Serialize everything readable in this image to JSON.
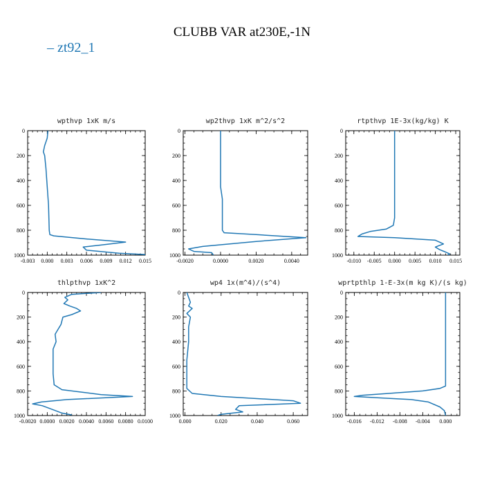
{
  "title": "CLUBB VAR at230E,-1N",
  "legend": {
    "label": "zt92_1",
    "color": "#1f77b4"
  },
  "chart_data": [
    {
      "type": "line",
      "title": "wpthvp  1xK m/s",
      "xlim": [
        -0.003,
        0.015
      ],
      "ylim": [
        0,
        1000
      ],
      "y_reversed": true,
      "xticks": [
        "-0.003",
        "0.000",
        "0.003",
        "0.006",
        "0.009",
        "0.012",
        "0.015"
      ],
      "yticks": [
        "0",
        "200",
        "400",
        "600",
        "800",
        "1000"
      ],
      "series": [
        {
          "color": "#1f77b4",
          "points": [
            [
              0.0001,
              0
            ],
            [
              0.0,
              60
            ],
            [
              -0.0004,
              120
            ],
            [
              -0.0006,
              170
            ],
            [
              -0.0004,
              200
            ],
            [
              -0.0002,
              300
            ],
            [
              0.0,
              450
            ],
            [
              0.0002,
              600
            ],
            [
              0.0003,
              800
            ],
            [
              0.0004,
              835
            ],
            [
              0.001,
              845
            ],
            [
              0.006,
              870
            ],
            [
              0.012,
              895
            ],
            [
              0.008,
              920
            ],
            [
              0.0055,
              935
            ],
            [
              0.006,
              960
            ],
            [
              0.011,
              985
            ],
            [
              0.015,
              995
            ]
          ]
        }
      ]
    },
    {
      "type": "line",
      "title": "wp2thvp  1xK m^2/s^2",
      "xlim": [
        -0.0021,
        0.0049
      ],
      "ylim": [
        0,
        1000
      ],
      "y_reversed": true,
      "xticks": [
        "-0.0020",
        "0.0000",
        "0.0020",
        "0.0040"
      ],
      "yticks": [
        "0",
        "200",
        "400",
        "600",
        "800",
        "1000"
      ],
      "series": [
        {
          "color": "#1f77b4",
          "points": [
            [
              0.0,
              0
            ],
            [
              0.0,
              300
            ],
            [
              0.0,
              450
            ],
            [
              0.0001,
              550
            ],
            [
              0.0001,
              700
            ],
            [
              0.0001,
              800
            ],
            [
              0.0002,
              820
            ],
            [
              0.002,
              835
            ],
            [
              0.0048,
              860
            ],
            [
              0.002,
              890
            ],
            [
              -0.001,
              930
            ],
            [
              -0.0018,
              950
            ],
            [
              -0.0015,
              970
            ],
            [
              -0.0005,
              980
            ],
            [
              -0.0004,
              1000
            ]
          ]
        }
      ]
    },
    {
      "type": "line",
      "title": "rtpthvp  1E-3x(kg/kg) K",
      "xlim": [
        -0.012,
        0.016
      ],
      "ylim": [
        0,
        1000
      ],
      "y_reversed": true,
      "xticks": [
        "-0.010",
        "-0.005",
        "0.000",
        "0.005",
        "0.010",
        "0.015"
      ],
      "yticks": [
        "0",
        "200",
        "400",
        "600",
        "800",
        "1000"
      ],
      "series": [
        {
          "color": "#1f77b4",
          "points": [
            [
              0.0,
              0
            ],
            [
              0.0,
              300
            ],
            [
              0.0,
              500
            ],
            [
              0.0,
              700
            ],
            [
              -0.0003,
              760
            ],
            [
              -0.002,
              790
            ],
            [
              -0.006,
              810
            ],
            [
              -0.008,
              830
            ],
            [
              -0.009,
              850
            ],
            [
              0.0,
              860
            ],
            [
              0.01,
              880
            ],
            [
              0.012,
              910
            ],
            [
              0.01,
              935
            ],
            [
              0.011,
              955
            ],
            [
              0.0125,
              975
            ],
            [
              0.0135,
              990
            ],
            [
              0.013,
              1000
            ]
          ]
        }
      ]
    },
    {
      "type": "line",
      "title": "thlpthvp  1xK^2",
      "xlim": [
        -0.002,
        0.01
      ],
      "ylim": [
        0,
        1000
      ],
      "y_reversed": true,
      "xticks": [
        "-0.0020",
        "0.0000",
        "0.0020",
        "0.0040",
        "0.0060",
        "0.0080",
        "0.0100"
      ],
      "yticks": [
        "0",
        "200",
        "400",
        "600",
        "800",
        "1000"
      ],
      "series": [
        {
          "color": "#1f77b4",
          "points": [
            [
              0.0055,
              0
            ],
            [
              0.0025,
              15
            ],
            [
              0.0018,
              40
            ],
            [
              0.0021,
              60
            ],
            [
              0.0017,
              90
            ],
            [
              0.0023,
              110
            ],
            [
              0.003,
              130
            ],
            [
              0.0034,
              150
            ],
            [
              0.0025,
              180
            ],
            [
              0.0016,
              200
            ],
            [
              0.0014,
              260
            ],
            [
              0.0011,
              300
            ],
            [
              0.0008,
              340
            ],
            [
              0.0009,
              400
            ],
            [
              0.0006,
              460
            ],
            [
              0.0006,
              560
            ],
            [
              0.0006,
              660
            ],
            [
              0.0007,
              750
            ],
            [
              0.0015,
              790
            ],
            [
              0.0055,
              830
            ],
            [
              0.0087,
              845
            ],
            [
              0.002,
              870
            ],
            [
              -0.0006,
              890
            ],
            [
              -0.0015,
              905
            ],
            [
              -0.0005,
              920
            ],
            [
              0.0005,
              950
            ],
            [
              0.0015,
              980
            ],
            [
              0.0025,
              995
            ]
          ]
        }
      ]
    },
    {
      "type": "line",
      "title": "wp4  1x(m^4)/(s^4)",
      "xlim": [
        -0.001,
        0.068
      ],
      "ylim": [
        0,
        1000
      ],
      "y_reversed": true,
      "xticks": [
        "0.000",
        "0.020",
        "0.040",
        "0.060"
      ],
      "yticks": [
        "0",
        "200",
        "400",
        "600",
        "800",
        "1000"
      ],
      "series": [
        {
          "color": "#1f77b4",
          "points": [
            [
              0.001,
              0
            ],
            [
              0.003,
              80
            ],
            [
              0.002,
              110
            ],
            [
              0.004,
              130
            ],
            [
              0.001,
              170
            ],
            [
              0.003,
              200
            ],
            [
              0.002,
              280
            ],
            [
              0.002,
              400
            ],
            [
              0.001,
              550
            ],
            [
              0.001,
              700
            ],
            [
              0.001,
              780
            ],
            [
              0.004,
              820
            ],
            [
              0.02,
              845
            ],
            [
              0.06,
              880
            ],
            [
              0.064,
              900
            ],
            [
              0.03,
              920
            ],
            [
              0.028,
              950
            ],
            [
              0.032,
              970
            ],
            [
              0.02,
              990
            ],
            [
              0.018,
              1000
            ]
          ]
        }
      ]
    },
    {
      "type": "line",
      "title": "wprtpthlp  1-E-3x(m kg K)/(s kg)",
      "xlim": [
        -0.0175,
        0.0025
      ],
      "ylim": [
        0,
        1000
      ],
      "y_reversed": true,
      "xticks": [
        "-0.016",
        "-0.012",
        "-0.008",
        "-0.004",
        "0.000"
      ],
      "yticks": [
        "0",
        "200",
        "400",
        "600",
        "800",
        "1000"
      ],
      "series": [
        {
          "color": "#1f77b4",
          "points": [
            [
              0.0,
              0
            ],
            [
              0.0,
              300
            ],
            [
              0.0,
              600
            ],
            [
              0.0,
              760
            ],
            [
              -0.001,
              780
            ],
            [
              -0.004,
              800
            ],
            [
              -0.01,
              820
            ],
            [
              -0.0145,
              835
            ],
            [
              -0.016,
              845
            ],
            [
              -0.012,
              855
            ],
            [
              -0.006,
              870
            ],
            [
              -0.003,
              890
            ],
            [
              -0.001,
              930
            ],
            [
              -0.0002,
              960
            ],
            [
              0.0,
              1000
            ]
          ]
        }
      ]
    }
  ]
}
